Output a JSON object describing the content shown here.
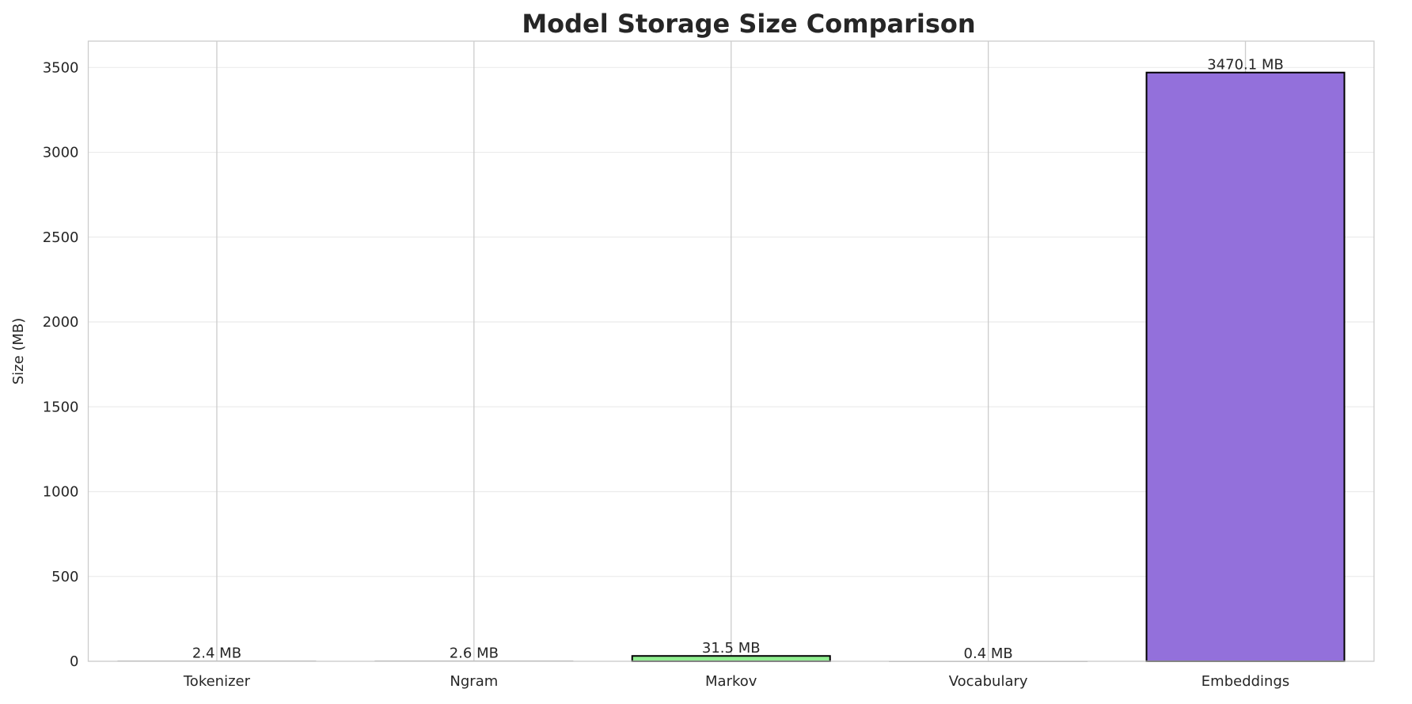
{
  "chart_data": {
    "type": "bar",
    "title": "Model Storage Size Comparison",
    "xlabel": "",
    "ylabel": "Size (MB)",
    "categories": [
      "Tokenizer",
      "Ngram",
      "Markov",
      "Vocabulary",
      "Embeddings"
    ],
    "values": [
      2.4,
      2.6,
      31.5,
      0.4,
      3470.1
    ],
    "data_labels": [
      "2.4 MB",
      "2.6 MB",
      "31.5 MB",
      "0.4 MB",
      "3470.1 MB"
    ],
    "colors": [
      "#87ceeb",
      "#f08080",
      "#90ee90",
      "#ffd700",
      "#9370db"
    ],
    "ylim": [
      0,
      3650
    ],
    "yticks": [
      0,
      500,
      1000,
      1500,
      2000,
      2500,
      3000,
      3500
    ],
    "grid": true,
    "legend": "none"
  }
}
